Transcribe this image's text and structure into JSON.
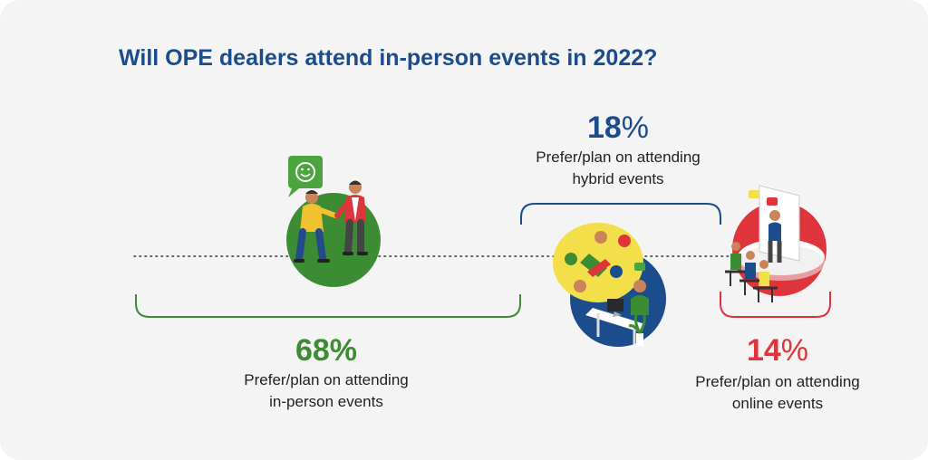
{
  "title": "Will OPE dealers attend in-person events in 2022?",
  "colors": {
    "background": "#f4f4f4",
    "title": "#1b4d8c",
    "in_person": "#3c8c34",
    "hybrid": "#1b4d8c",
    "online": "#e0343c"
  },
  "stats": [
    {
      "id": "in-person",
      "value": "68",
      "unit": "%",
      "line1": "Prefer/plan on attending",
      "line2": "in-person events",
      "color": "#3c8c34"
    },
    {
      "id": "hybrid",
      "value": "18",
      "unit": "%",
      "line1": "Prefer/plan on attending",
      "line2": "hybrid events",
      "color": "#1b4d8c"
    },
    {
      "id": "online",
      "value": "14",
      "unit": "%",
      "line1": "Prefer/plan on attending",
      "line2": "online events",
      "color": "#e0343c"
    }
  ],
  "icons": [
    "smiley-speech-bubble-icon",
    "handshake-people-icon",
    "video-call-desk-icon",
    "classroom-presentation-icon"
  ]
}
